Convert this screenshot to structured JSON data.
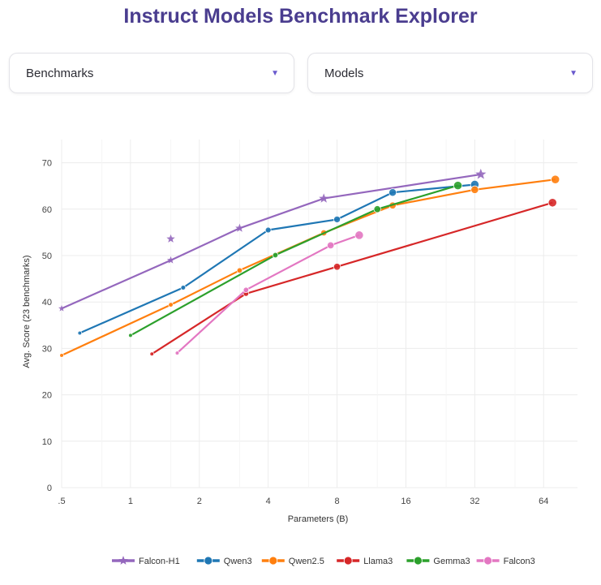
{
  "page": {
    "title": "Instruct Models Benchmark Explorer"
  },
  "controls": {
    "benchmarks_label": "Benchmarks",
    "models_label": "Models",
    "caret": "▼"
  },
  "chart_data": {
    "type": "line",
    "xlabel": "Parameters (B)",
    "ylabel": "Avg. Score (23 benchmarks)",
    "x_scale": "log2",
    "x_ticks": [
      0.5,
      1,
      2,
      4,
      8,
      16,
      32,
      64
    ],
    "x_tick_labels": [
      ".5",
      "1",
      "2",
      "4",
      "8",
      "16",
      "32",
      "64"
    ],
    "xlim": [
      0.5,
      90
    ],
    "ylim": [
      0,
      75
    ],
    "y_ticks": [
      0,
      10,
      20,
      30,
      40,
      50,
      60,
      70
    ],
    "grid": true,
    "legend_position": "bottom",
    "series": [
      {
        "name": "Falcon-H1",
        "color": "#9467bd",
        "marker": "star",
        "points": [
          [
            0.5,
            38.6
          ],
          [
            1.5,
            49.0
          ],
          [
            3,
            55.9
          ],
          [
            7,
            62.3
          ],
          [
            34,
            67.5
          ]
        ],
        "outliers": [
          [
            1.5,
            53.6
          ]
        ]
      },
      {
        "name": "Qwen3",
        "color": "#1f77b4",
        "marker": "circle",
        "points": [
          [
            0.6,
            33.3
          ],
          [
            1.7,
            43.1
          ],
          [
            4,
            55.5
          ],
          [
            8,
            57.8
          ],
          [
            14,
            63.6
          ],
          [
            32,
            65.3
          ]
        ]
      },
      {
        "name": "Qwen2.5",
        "color": "#ff7f0e",
        "marker": "circle",
        "points": [
          [
            0.5,
            28.5
          ],
          [
            1.5,
            39.4
          ],
          [
            3,
            46.8
          ],
          [
            7,
            54.9
          ],
          [
            14,
            60.8
          ],
          [
            32,
            64.2
          ],
          [
            72,
            66.4
          ]
        ]
      },
      {
        "name": "Llama3",
        "color": "#d62728",
        "marker": "circle",
        "points": [
          [
            1.24,
            28.8
          ],
          [
            3.2,
            41.8
          ],
          [
            8,
            47.6
          ],
          [
            70,
            61.4
          ]
        ]
      },
      {
        "name": "Gemma3",
        "color": "#2ca02c",
        "marker": "circle",
        "points": [
          [
            1,
            32.8
          ],
          [
            4.3,
            50.1
          ],
          [
            12,
            60.0
          ],
          [
            27,
            65.1
          ]
        ]
      },
      {
        "name": "Falcon3",
        "color": "#e377c2",
        "marker": "circle",
        "points": [
          [
            1.6,
            29.0
          ],
          [
            3.2,
            42.6
          ],
          [
            7.5,
            52.2
          ],
          [
            10,
            54.4
          ]
        ]
      }
    ]
  }
}
